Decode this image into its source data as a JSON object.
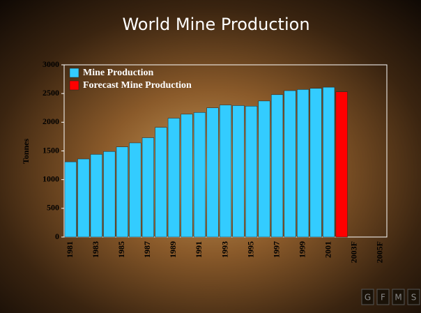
{
  "chart_data": {
    "type": "bar",
    "title": "World Mine Production",
    "y_label": "Tonnes",
    "categories": [
      "1981",
      null,
      "1983",
      null,
      "1985",
      null,
      "1987",
      null,
      "1989",
      null,
      "1991",
      null,
      "1993",
      null,
      "1995",
      null,
      "1997",
      null,
      "1999",
      null,
      "2001",
      null,
      "2003F",
      null,
      "2005F"
    ],
    "series": [
      {
        "name": "Mine Production",
        "color": "#33ccff",
        "values": [
          1310,
          1360,
          1440,
          1490,
          1570,
          1640,
          1730,
          1910,
          2070,
          2140,
          2170,
          2250,
          2300,
          2290,
          2280,
          2370,
          2480,
          2550,
          2570,
          2590,
          2610,
          null,
          null,
          null,
          null
        ]
      },
      {
        "name": "Forecast Mine Production",
        "color": "#ff0000",
        "values": [
          null,
          null,
          null,
          null,
          null,
          null,
          null,
          null,
          null,
          null,
          null,
          null,
          null,
          null,
          null,
          null,
          null,
          null,
          null,
          null,
          null,
          2530,
          null,
          null,
          null
        ]
      }
    ],
    "ylim": [
      0,
      3000
    ],
    "yticks": [
      0,
      500,
      1000,
      1500,
      2000,
      2500,
      3000
    ],
    "legend": "top-left",
    "logo": [
      "G",
      "F",
      "M",
      "S"
    ]
  }
}
